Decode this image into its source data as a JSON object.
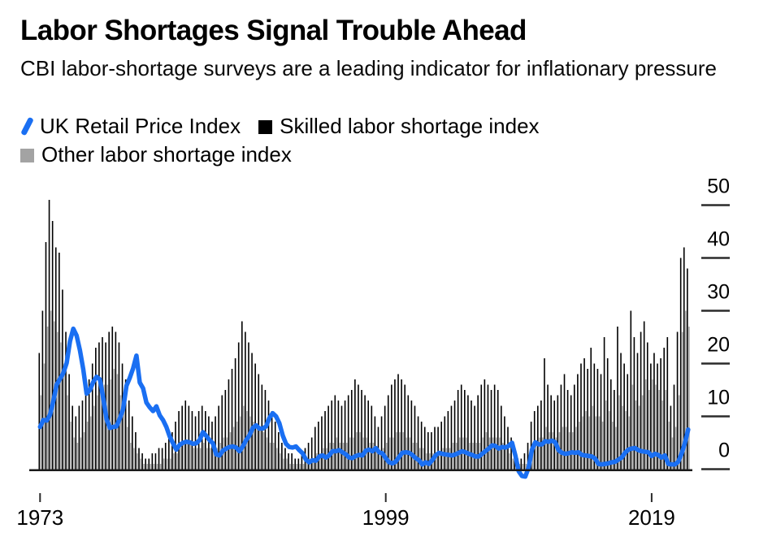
{
  "header": {
    "title": "Labor Shortages Signal Trouble Ahead",
    "subtitle": "CBI labor-shortage surveys are a leading indicator for inflationary pressure"
  },
  "legend": {
    "items": [
      {
        "label": "UK Retail Price Index",
        "marker": "line-slash",
        "color": "#1a6ff2"
      },
      {
        "label": "Skilled labor shortage index",
        "marker": "square",
        "color": "#000000"
      },
      {
        "label": "Other labor shortage index",
        "marker": "square",
        "color": "#a3a3a3"
      }
    ]
  },
  "colors": {
    "line_blue": "#1a6ff2",
    "bar_black": "#000000",
    "bar_gray": "#a9a9a9",
    "axis": "#1a1a1a",
    "tick": "#2b2b2b",
    "background": "#ffffff"
  },
  "chart_data": {
    "type": "combo-bar-line",
    "frequency": "quarterly",
    "x_start_year": 1973.0,
    "x_step_years": 0.25,
    "x_axis": {
      "tick_years": [
        1973,
        1999,
        2019
      ],
      "tick_labels": [
        "1973",
        "1999",
        "2019"
      ]
    },
    "y_axis": {
      "side": "right",
      "ticks": [
        50,
        40,
        30,
        20,
        10,
        0
      ],
      "ylim": [
        -5,
        52
      ],
      "baseline": 0
    },
    "grid": "off",
    "legend_position": "top-left",
    "series": [
      {
        "name": "UK Retail Price Index",
        "type": "line",
        "color": "#1a6ff2",
        "values": [
          8.0,
          9.3,
          9.2,
          10.3,
          12.9,
          16.0,
          17.1,
          18.2,
          20.1,
          24.2,
          26.6,
          25.3,
          22.5,
          18.9,
          14.3,
          15.0,
          16.5,
          17.5,
          17.0,
          13.5,
          9.5,
          7.8,
          8.0,
          8.1,
          9.6,
          11.4,
          15.8,
          17.3,
          19.1,
          21.5,
          16.4,
          15.3,
          12.6,
          11.7,
          11.0,
          11.9,
          10.2,
          9.3,
          8.0,
          6.2,
          4.9,
          3.7,
          4.6,
          5.0,
          5.2,
          5.1,
          4.8,
          4.9,
          5.5,
          7.0,
          6.3,
          5.5,
          4.9,
          2.8,
          2.6,
          3.5,
          3.9,
          4.2,
          4.3,
          4.1,
          3.4,
          4.3,
          5.5,
          6.4,
          7.8,
          8.3,
          7.7,
          7.7,
          8.1,
          9.7,
          10.6,
          10.0,
          8.7,
          6.4,
          4.8,
          4.2,
          4.1,
          4.3,
          3.6,
          3.0,
          1.8,
          1.3,
          1.7,
          1.6,
          2.4,
          2.6,
          2.2,
          2.6,
          3.4,
          3.4,
          3.6,
          3.2,
          2.8,
          2.2,
          2.1,
          2.5,
          2.7,
          2.6,
          3.5,
          3.7,
          3.4,
          4.0,
          3.2,
          3.0,
          2.1,
          1.3,
          1.1,
          1.4,
          2.3,
          3.1,
          3.2,
          3.1,
          2.7,
          2.1,
          1.7,
          0.9,
          1.3,
          1.0,
          1.7,
          2.6,
          3.1,
          2.9,
          2.8,
          2.7,
          2.6,
          2.8,
          3.1,
          3.4,
          3.2,
          2.9,
          2.7,
          2.4,
          2.4,
          2.9,
          3.4,
          3.9,
          4.5,
          4.4,
          3.9,
          4.2,
          4.1,
          4.4,
          5.0,
          2.6,
          -0.4,
          -1.3,
          -1.4,
          0.3,
          3.7,
          5.1,
          4.7,
          4.7,
          5.3,
          5.2,
          5.4,
          5.1,
          3.6,
          3.1,
          2.9,
          3.0,
          3.2,
          3.1,
          3.2,
          2.7,
          2.6,
          2.5,
          2.4,
          2.0,
          1.0,
          0.9,
          1.0,
          1.1,
          1.3,
          1.4,
          1.8,
          2.2,
          3.1,
          3.7,
          3.9,
          4.0,
          3.6,
          3.4,
          3.3,
          3.2,
          2.5,
          2.9,
          2.7,
          2.2,
          2.6,
          1.0,
          0.9,
          0.9,
          1.4,
          2.9,
          4.9,
          7.5
        ]
      },
      {
        "name": "Skilled labor shortage index",
        "type": "bar",
        "color": "#000000",
        "values": [
          22,
          30,
          43,
          51,
          47,
          42,
          41,
          34,
          26,
          18,
          12,
          10,
          12,
          13,
          15,
          17,
          20,
          23,
          24,
          25,
          24,
          26,
          27,
          26,
          24,
          20,
          17,
          13,
          10,
          7,
          4,
          3,
          2,
          2,
          3,
          3,
          4,
          4,
          5,
          6,
          7,
          9,
          11,
          12,
          13,
          12,
          11,
          10,
          11,
          12,
          11,
          10,
          9,
          10,
          12,
          14,
          15,
          17,
          19,
          21,
          24,
          28,
          26,
          24,
          22,
          20,
          18,
          16,
          15,
          13,
          11,
          9,
          7,
          5,
          4,
          3,
          3,
          2,
          2,
          3,
          4,
          5,
          6,
          8,
          9,
          10,
          11,
          12,
          13,
          14,
          13,
          12,
          13,
          14,
          15,
          17,
          16,
          15,
          14,
          13,
          12,
          10,
          8,
          10,
          12,
          14,
          16,
          17,
          18,
          17,
          16,
          14,
          13,
          12,
          10,
          9,
          8,
          7,
          7,
          8,
          8,
          9,
          10,
          11,
          12,
          13,
          15,
          16,
          15,
          14,
          13,
          12,
          14,
          16,
          17,
          16,
          15,
          16,
          15,
          12,
          10,
          8,
          6,
          3,
          2,
          2,
          3,
          5,
          9,
          11,
          12,
          13,
          21,
          16,
          14,
          13,
          14,
          16,
          18,
          15,
          14,
          16,
          18,
          20,
          21,
          19,
          23,
          20,
          19,
          18,
          25,
          21,
          17,
          15,
          27,
          22,
          20,
          18,
          30,
          25,
          22,
          26,
          28,
          24,
          20,
          22,
          20,
          21,
          23,
          25,
          12,
          16,
          26,
          40,
          42,
          38
        ]
      },
      {
        "name": "Other labor shortage index",
        "type": "bar",
        "color": "#a9a9a9",
        "values": [
          14,
          20,
          27,
          30,
          28,
          26,
          24,
          20,
          14,
          9,
          6,
          5,
          6,
          7,
          9,
          10,
          12,
          14,
          15,
          16,
          16,
          17,
          19,
          18,
          14,
          11,
          8,
          5,
          4,
          3,
          2,
          1,
          1,
          1,
          1,
          1,
          1,
          2,
          2,
          2,
          3,
          3,
          4,
          5,
          5,
          5,
          4,
          4,
          4,
          5,
          4,
          4,
          4,
          4,
          5,
          6,
          6,
          7,
          8,
          9,
          10,
          12,
          11,
          10,
          9,
          8,
          8,
          7,
          6,
          5,
          5,
          4,
          3,
          2,
          2,
          1,
          1,
          1,
          1,
          1,
          2,
          2,
          2,
          3,
          3,
          4,
          4,
          5,
          5,
          6,
          5,
          5,
          5,
          6,
          6,
          7,
          7,
          6,
          6,
          5,
          5,
          4,
          3,
          4,
          5,
          6,
          6,
          7,
          7,
          7,
          6,
          6,
          5,
          5,
          4,
          4,
          3,
          3,
          3,
          3,
          3,
          4,
          4,
          4,
          5,
          5,
          6,
          6,
          6,
          5,
          5,
          5,
          5,
          6,
          7,
          6,
          6,
          6,
          6,
          5,
          4,
          3,
          2,
          1,
          1,
          1,
          1,
          2,
          4,
          5,
          6,
          6,
          8,
          7,
          7,
          6,
          7,
          8,
          8,
          7,
          7,
          8,
          9,
          10,
          11,
          10,
          12,
          10,
          10,
          9,
          13,
          11,
          9,
          8,
          14,
          12,
          11,
          10,
          16,
          13,
          12,
          14,
          17,
          15,
          17,
          16,
          15,
          13,
          15,
          9,
          6,
          8,
          14,
          26,
          30,
          27
        ]
      }
    ]
  }
}
